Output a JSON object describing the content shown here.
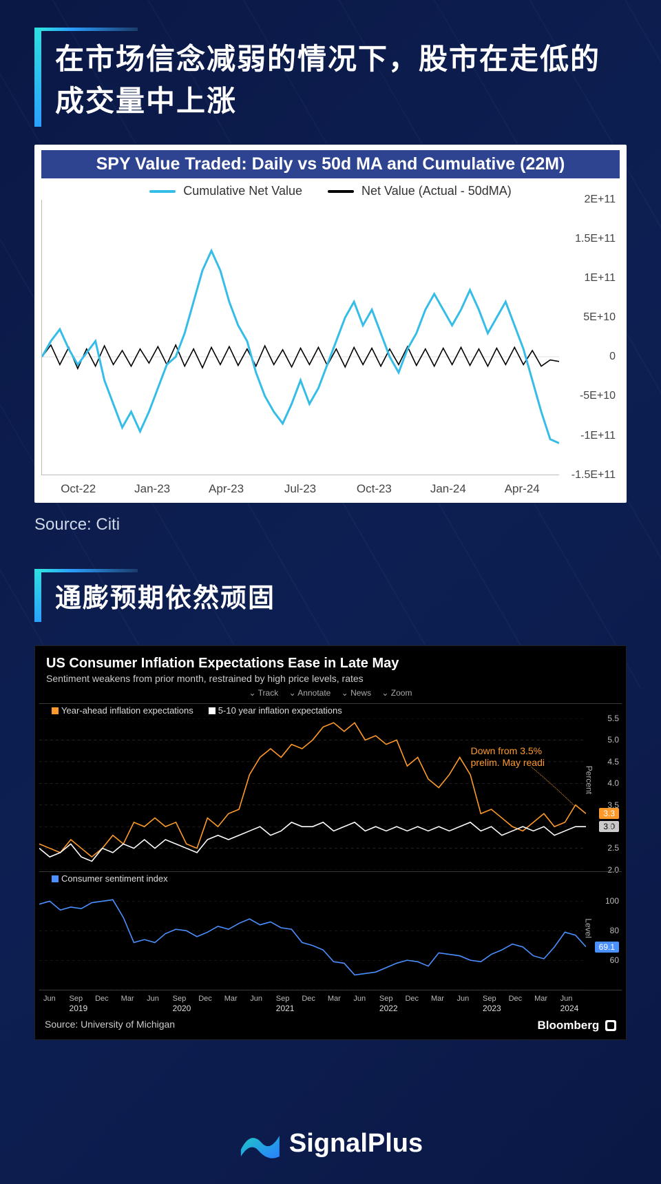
{
  "page": {
    "background_gradient": [
      "#0a1845",
      "#0d1f52",
      "#0a1845"
    ]
  },
  "section1": {
    "heading": "在市场信念减弱的情况下，股市在走低的成交量中上涨",
    "source_label": "Source: Citi",
    "chart": {
      "type": "line",
      "title": "SPY Value Traded: Daily vs 50d MA and Cumulative (22M)",
      "title_bg": "#2f4490",
      "title_color": "#ffffff",
      "title_fontsize": 25,
      "background_color": "#ffffff",
      "axis_color": "#bbbbbb",
      "tick_color": "#444444",
      "tick_fontsize": 16,
      "legend": [
        {
          "label": "Cumulative Net Value",
          "color": "#35bde8",
          "width": 4
        },
        {
          "label": "Net Value (Actual - 50dMA)",
          "color": "#000000",
          "width": 2
        }
      ],
      "y": {
        "min": -150000000000.0,
        "max": 200000000000.0,
        "step": 50000000000.0,
        "ticks": [
          "2E+11",
          "1.5E+11",
          "1E+11",
          "5E+10",
          "0",
          "-5E+10",
          "-1E+11",
          "-1.5E+11"
        ]
      },
      "x": {
        "ticks": [
          "Oct-22",
          "Jan-23",
          "Apr-23",
          "Jul-23",
          "Oct-23",
          "Jan-24",
          "Apr-24"
        ]
      },
      "series_cumulative": {
        "color": "#35bde8",
        "width": 3,
        "values": [
          0,
          20000000000.0,
          35000000000.0,
          10000000000.0,
          -10000000000.0,
          5000000000.0,
          20000000000.0,
          -30000000000.0,
          -60000000000.0,
          -90000000000.0,
          -70000000000.0,
          -95000000000.0,
          -70000000000.0,
          -40000000000.0,
          -10000000000.0,
          0,
          30000000000.0,
          70000000000.0,
          110000000000.0,
          135000000000.0,
          110000000000.0,
          70000000000.0,
          40000000000.0,
          20000000000.0,
          -20000000000.0,
          -50000000000.0,
          -70000000000.0,
          -85000000000.0,
          -60000000000.0,
          -30000000000.0,
          -60000000000.0,
          -40000000000.0,
          -10000000000.0,
          20000000000.0,
          50000000000.0,
          70000000000.0,
          40000000000.0,
          60000000000.0,
          30000000000.0,
          0,
          -20000000000.0,
          10000000000.0,
          30000000000.0,
          60000000000.0,
          80000000000.0,
          60000000000.0,
          40000000000.0,
          60000000000.0,
          85000000000.0,
          60000000000.0,
          30000000000.0,
          50000000000.0,
          70000000000.0,
          40000000000.0,
          10000000000.0,
          -30000000000.0,
          -70000000000.0,
          -105000000000.0,
          -110000000000.0
        ]
      },
      "series_net": {
        "color": "#000000",
        "width": 1.6,
        "values": [
          0,
          15000000000.0,
          -10000000000.0,
          12000000000.0,
          -15000000000.0,
          10000000000.0,
          -12000000000.0,
          14000000000.0,
          -10000000000.0,
          8000000000.0,
          -12000000000.0,
          10000000000.0,
          -8000000000.0,
          13000000000.0,
          -10000000000.0,
          15000000000.0,
          -12000000000.0,
          10000000000.0,
          -14000000000.0,
          12000000000.0,
          -10000000000.0,
          13000000000.0,
          -11000000000.0,
          10000000000.0,
          -12000000000.0,
          14000000000.0,
          -10000000000.0,
          9000000000.0,
          -13000000000.0,
          11000000000.0,
          -10000000000.0,
          12000000000.0,
          -11000000000.0,
          10000000000.0,
          -13000000000.0,
          12000000000.0,
          -10000000000.0,
          11000000000.0,
          -12000000000.0,
          10000000000.0,
          -10000000000.0,
          13000000000.0,
          -11000000000.0,
          10000000000.0,
          -12000000000.0,
          11000000000.0,
          -10000000000.0,
          12000000000.0,
          -11000000000.0,
          10000000000.0,
          -12000000000.0,
          11000000000.0,
          -10000000000.0,
          12000000000.0,
          -10000000000.0,
          8000000000.0,
          -12000000000.0,
          -4000000000.0,
          -6000000000.0
        ]
      }
    }
  },
  "section2": {
    "heading": "通膨预期依然顽固",
    "chart": {
      "type": "line_multi_panel",
      "background_color": "#000000",
      "grid_color": "#3a3a3a",
      "text_color": "#eeeeee",
      "title": "US Consumer Inflation Expectations Ease in Late May",
      "subtitle": "Sentiment weakens from prior month, restrained by high price levels, rates",
      "toolbar": [
        "Track",
        "Annotate",
        "News",
        "Zoom"
      ],
      "annotation": {
        "text_lines": [
          "Down from 3.5%",
          "prelim. May readi"
        ],
        "color": "#ff9a2a"
      },
      "panel_top": {
        "ylabel": "Percent",
        "y": {
          "min": 2.0,
          "max": 5.5,
          "step": 0.5,
          "ticks": [
            "5.5",
            "5.0",
            "4.5",
            "4.0",
            "3.5",
            "3.0",
            "2.5",
            "2.0"
          ]
        },
        "series": [
          {
            "name": "Year-ahead inflation expectations",
            "color": "#ff9a2a",
            "marker": "square",
            "end_label": "3.3",
            "end_label_bg": "#ff9a2a",
            "values": [
              2.6,
              2.5,
              2.4,
              2.7,
              2.5,
              2.3,
              2.5,
              2.8,
              2.6,
              3.1,
              3.0,
              3.2,
              3.0,
              3.1,
              2.6,
              2.5,
              3.2,
              3.0,
              3.3,
              3.4,
              4.2,
              4.6,
              4.8,
              4.6,
              4.9,
              4.8,
              5.0,
              5.3,
              5.4,
              5.2,
              5.4,
              5.0,
              5.1,
              4.9,
              5.0,
              4.4,
              4.6,
              4.1,
              3.9,
              4.2,
              4.6,
              4.2,
              3.3,
              3.4,
              3.2,
              3.0,
              2.9,
              3.1,
              3.3,
              3.0,
              3.1,
              3.5,
              3.3
            ]
          },
          {
            "name": "5-10 year inflation expectations",
            "color": "#ffffff",
            "marker": "square",
            "end_label": "3.0",
            "end_label_bg": "#cccccc",
            "end_label_color": "#000000",
            "values": [
              2.5,
              2.3,
              2.4,
              2.6,
              2.3,
              2.2,
              2.5,
              2.4,
              2.6,
              2.5,
              2.7,
              2.5,
              2.7,
              2.6,
              2.5,
              2.4,
              2.7,
              2.8,
              2.7,
              2.8,
              2.9,
              3.0,
              2.8,
              2.9,
              3.1,
              3.0,
              3.0,
              3.1,
              2.9,
              3.0,
              3.1,
              2.9,
              3.0,
              2.9,
              3.0,
              2.9,
              3.0,
              2.9,
              3.0,
              2.9,
              3.0,
              3.1,
              2.9,
              3.0,
              2.8,
              2.9,
              3.0,
              2.9,
              3.0,
              2.8,
              2.9,
              3.0,
              3.0
            ]
          }
        ]
      },
      "panel_bottom": {
        "ylabel": "Level",
        "y": {
          "min": 40,
          "max": 110,
          "step": 20,
          "ticks": [
            "100",
            "80",
            "60"
          ]
        },
        "series": [
          {
            "name": "Consumer sentiment index",
            "color": "#4a90ff",
            "marker": "square",
            "end_label": "69.1",
            "end_label_bg": "#4a90ff",
            "values": [
              98,
              100,
              94,
              96,
              95,
              99,
              100,
              101,
              89,
              72,
              74,
              72,
              78,
              81,
              80,
              76,
              79,
              83,
              81,
              85,
              88,
              84,
              86,
              82,
              81,
              72,
              70,
              67,
              59,
              58,
              50,
              51,
              52,
              55,
              58,
              60,
              59,
              56,
              65,
              64,
              63,
              60,
              59,
              64,
              67,
              71,
              69,
              63,
              61,
              69,
              79,
              77,
              69.1
            ]
          }
        ]
      },
      "x": {
        "labels": [
          {
            "m": "Jun",
            "y": ""
          },
          {
            "m": "Sep",
            "y": "2019"
          },
          {
            "m": "Dec",
            "y": ""
          },
          {
            "m": "Mar",
            "y": ""
          },
          {
            "m": "Jun",
            "y": ""
          },
          {
            "m": "Sep",
            "y": "2020"
          },
          {
            "m": "Dec",
            "y": ""
          },
          {
            "m": "Mar",
            "y": ""
          },
          {
            "m": "Jun",
            "y": ""
          },
          {
            "m": "Sep",
            "y": "2021"
          },
          {
            "m": "Dec",
            "y": ""
          },
          {
            "m": "Mar",
            "y": ""
          },
          {
            "m": "Jun",
            "y": ""
          },
          {
            "m": "Sep",
            "y": "2022"
          },
          {
            "m": "Dec",
            "y": ""
          },
          {
            "m": "Mar",
            "y": ""
          },
          {
            "m": "Jun",
            "y": ""
          },
          {
            "m": "Sep",
            "y": "2023"
          },
          {
            "m": "Dec",
            "y": ""
          },
          {
            "m": "Mar",
            "y": ""
          },
          {
            "m": "Jun",
            "y": "2024"
          }
        ]
      },
      "footer_source": "Source: University of Michigan",
      "footer_brand": "Bloomberg"
    }
  },
  "branding": {
    "name": "SignalPlus",
    "logo_colors": [
      "#1fc6c6",
      "#2a7fff"
    ]
  }
}
